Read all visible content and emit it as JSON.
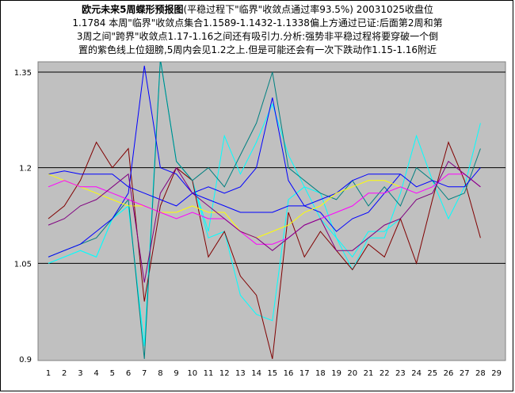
{
  "title": {
    "bold_part": "欧元未来5周蝶形预报图",
    "line1_rest": "(平稳过程下\"临界\"收敛点通过率93.5%) 20031025收盘位",
    "line2": "1.1784 本周\"临界\"收敛点集合1.1589-1.1432-1.1338偏上方通过已证:后面第2周和第",
    "line3": "3周之间\"跨界\"收敛点1.17-1.16之间还有吸引力.分析:强势非平稳过程将要穿破一个倒",
    "line4": "置的紫色线上位翅膀,5周内会见1.2之上.但是可能还会有一次下跌动作1.15-1.16附近"
  },
  "chart_data": {
    "type": "line",
    "xlim": [
      1,
      29
    ],
    "ylim": [
      0.9,
      1.35
    ],
    "x_ticks": [
      "1",
      "2",
      "3",
      "4",
      "5",
      "6",
      "7",
      "8",
      "9",
      "10",
      "11",
      "12",
      "13",
      "14",
      "15",
      "16",
      "17",
      "18",
      "19",
      "20",
      "21",
      "22",
      "23",
      "24",
      "25",
      "26",
      "27",
      "28",
      "29"
    ],
    "y_ticks": [
      {
        "value": 0.9,
        "label": "0.9"
      },
      {
        "value": 1.05,
        "label": "1.05"
      },
      {
        "value": 1.2,
        "label": "1.2"
      },
      {
        "value": 1.35,
        "label": "1.35"
      }
    ],
    "gridlines_y": [
      1.05,
      1.2,
      1.35
    ],
    "plot_background": "#c0c0c0",
    "series": [
      {
        "color": "#00ffff",
        "x": [
          1,
          2,
          3,
          4,
          5,
          6,
          7,
          8,
          9,
          10,
          11,
          12,
          13,
          14,
          15,
          16,
          17,
          18,
          19,
          20,
          21,
          22,
          23
        ],
        "values": [
          1.05,
          1.06,
          1.07,
          1.06,
          1.12,
          1.14,
          0.92,
          1.37,
          1.21,
          1.18,
          1.09,
          1.1,
          1.0,
          0.97,
          0.96,
          1.15,
          1.17,
          1.12,
          1.09,
          1.06,
          1.1,
          1.1,
          1.12
        ]
      },
      {
        "color": "#00ffff",
        "x": [
          1,
          2,
          3,
          4,
          5,
          6,
          7,
          8,
          9,
          10,
          11,
          12,
          13,
          14,
          15,
          16,
          17,
          18,
          19,
          20,
          21,
          22,
          23,
          24,
          25,
          26,
          27,
          28
        ],
        "values": [
          1.05,
          1.06,
          1.07,
          1.06,
          1.12,
          1.14,
          0.92,
          1.37,
          1.21,
          1.18,
          1.1,
          1.25,
          1.19,
          1.24,
          1.3,
          1.22,
          1.17,
          1.16,
          1.09,
          1.04,
          1.09,
          1.09,
          1.16,
          1.25,
          1.18,
          1.12,
          1.17,
          1.27
        ]
      },
      {
        "color": "#800000",
        "x": [
          1,
          2,
          3,
          4,
          5,
          6,
          7,
          8,
          9,
          10,
          11,
          12,
          13,
          14,
          15,
          16,
          17,
          18,
          19,
          20,
          21,
          22,
          23,
          24,
          25,
          26,
          27,
          28
        ],
        "values": [
          1.12,
          1.14,
          1.18,
          1.24,
          1.2,
          1.23,
          0.99,
          1.14,
          1.2,
          1.18,
          1.06,
          1.1,
          1.03,
          1.0,
          0.9,
          1.13,
          1.06,
          1.1,
          1.07,
          1.04,
          1.08,
          1.06,
          1.12,
          1.05,
          1.15,
          1.24,
          1.18,
          1.09
        ]
      },
      {
        "color": "#008080",
        "x": [
          1,
          2,
          3,
          4,
          5,
          6,
          7,
          8,
          9,
          10,
          11,
          12,
          13,
          14,
          15,
          16,
          17,
          18,
          19,
          20,
          21,
          22,
          23,
          24,
          25,
          26,
          27,
          28
        ],
        "values": [
          1.06,
          1.07,
          1.08,
          1.09,
          1.12,
          1.15,
          0.9,
          1.37,
          1.21,
          1.18,
          1.2,
          1.17,
          1.22,
          1.27,
          1.35,
          1.2,
          1.18,
          1.16,
          1.15,
          1.18,
          1.14,
          1.17,
          1.14,
          1.2,
          1.18,
          1.15,
          1.16,
          1.23
        ]
      },
      {
        "color": "#0000ff",
        "x": [
          1,
          2,
          3,
          4,
          5,
          6,
          7,
          8,
          9,
          10,
          11,
          12,
          13,
          14,
          15,
          16,
          17,
          18,
          19,
          20,
          21,
          22,
          23
        ],
        "values": [
          1.06,
          1.07,
          1.08,
          1.1,
          1.12,
          1.16,
          1.36,
          1.2,
          1.19,
          1.16,
          1.17,
          1.16,
          1.17,
          1.2,
          1.31,
          1.18,
          1.14,
          1.13,
          1.1,
          1.12,
          1.13,
          1.16,
          1.19
        ]
      },
      {
        "color": "#0000ff",
        "x": [
          1,
          2,
          3,
          4,
          5,
          6,
          7,
          8,
          9,
          10,
          11,
          12,
          13,
          14,
          15,
          16,
          17,
          18,
          19,
          20,
          21,
          22,
          23,
          24,
          25,
          26,
          27,
          28
        ],
        "values": [
          1.19,
          1.195,
          1.19,
          1.19,
          1.19,
          1.17,
          1.16,
          1.15,
          1.14,
          1.16,
          1.15,
          1.14,
          1.13,
          1.13,
          1.13,
          1.14,
          1.14,
          1.15,
          1.16,
          1.18,
          1.19,
          1.19,
          1.19,
          1.17,
          1.18,
          1.17,
          1.17,
          1.2
        ]
      },
      {
        "color": "#ffff00",
        "x": [
          1,
          2,
          3,
          4,
          5,
          6,
          7,
          8,
          9,
          10,
          11,
          12,
          13,
          14,
          15,
          16,
          17,
          18,
          19,
          20,
          21,
          22,
          23
        ],
        "values": [
          1.19,
          1.18,
          1.17,
          1.16,
          1.15,
          1.14,
          1.14,
          1.13,
          1.13,
          1.14,
          1.13,
          1.13,
          1.1,
          1.09,
          1.1,
          1.11,
          1.13,
          1.14,
          1.16,
          1.17,
          1.18,
          1.18,
          1.17
        ]
      },
      {
        "color": "#ff00ff",
        "x": [
          1,
          2,
          3,
          4,
          5,
          6,
          7,
          8,
          9,
          10,
          11,
          12,
          13,
          14,
          15,
          16,
          17,
          18,
          19,
          20,
          21,
          22,
          23,
          24,
          25,
          26,
          27,
          28
        ],
        "values": [
          1.17,
          1.18,
          1.17,
          1.17,
          1.16,
          1.15,
          1.14,
          1.13,
          1.12,
          1.13,
          1.12,
          1.12,
          1.1,
          1.08,
          1.08,
          1.09,
          1.11,
          1.12,
          1.13,
          1.14,
          1.16,
          1.16,
          1.17,
          1.16,
          1.17,
          1.19,
          1.19,
          1.17
        ]
      },
      {
        "color": "#800080",
        "x": [
          1,
          2,
          3,
          4,
          5,
          6,
          7,
          8,
          9,
          10,
          11,
          12,
          13,
          14,
          15,
          16,
          17,
          18,
          19,
          20,
          21,
          22,
          23,
          24,
          25,
          26,
          27,
          28
        ],
        "values": [
          1.11,
          1.12,
          1.14,
          1.15,
          1.17,
          1.19,
          1.02,
          1.16,
          1.2,
          1.16,
          1.14,
          1.12,
          1.1,
          1.09,
          1.07,
          1.09,
          1.11,
          1.12,
          1.07,
          1.07,
          1.09,
          1.11,
          1.12,
          1.15,
          1.16,
          1.21,
          1.19,
          1.17
        ]
      }
    ]
  }
}
